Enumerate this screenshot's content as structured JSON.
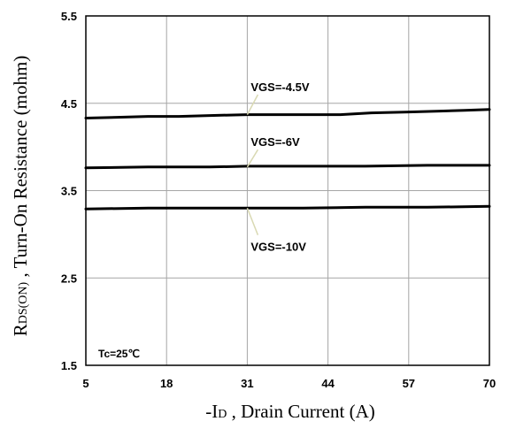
{
  "chart_data": {
    "type": "line",
    "xlabel": {
      "prefix": "-I",
      "sub": "D",
      "rest": " , Drain Current (A)"
    },
    "ylabel": {
      "prefix": "R",
      "sub": "DS(ON)",
      "rest": " , Turn-On Resistance (mohm)"
    },
    "xlim": [
      5,
      70
    ],
    "ylim": [
      1.5,
      5.5
    ],
    "x_ticks": [
      5,
      18,
      31,
      44,
      57,
      70
    ],
    "x_tick_labels": [
      "5",
      "18",
      "31",
      "44",
      "57",
      "70"
    ],
    "y_ticks": [
      1.5,
      2.5,
      3.5,
      4.5,
      5.5
    ],
    "y_tick_labels": [
      "1.5",
      "2.5",
      "3.5",
      "4.5",
      "5.5"
    ],
    "grid": true,
    "annotation": "Tc=25℃",
    "colors": {
      "line": "#000000",
      "grid": "#a6a6a6",
      "leader": "#d9d9b3"
    },
    "series": [
      {
        "name": "VGS=-4.5V",
        "x": [
          5,
          10,
          15,
          20,
          25,
          31,
          36,
          41,
          46,
          51,
          57,
          62,
          66,
          70
        ],
        "y": [
          4.33,
          4.34,
          4.35,
          4.35,
          4.36,
          4.37,
          4.37,
          4.37,
          4.37,
          4.39,
          4.4,
          4.41,
          4.42,
          4.43
        ],
        "label_anchor": [
          31,
          4.37
        ],
        "label_pos": [
          31,
          4.69
        ]
      },
      {
        "name": "VGS=-6V",
        "x": [
          5,
          15,
          25,
          31,
          40,
          50,
          60,
          70
        ],
        "y": [
          3.76,
          3.77,
          3.77,
          3.78,
          3.78,
          3.78,
          3.79,
          3.79
        ],
        "label_anchor": [
          31,
          3.77
        ],
        "label_pos": [
          31,
          4.06
        ]
      },
      {
        "name": "VGS=-10V",
        "x": [
          5,
          15,
          25,
          31,
          40,
          50,
          60,
          70
        ],
        "y": [
          3.29,
          3.3,
          3.3,
          3.3,
          3.3,
          3.31,
          3.31,
          3.32
        ],
        "label_anchor": [
          31,
          3.3
        ],
        "label_pos": [
          31,
          2.86
        ]
      }
    ]
  }
}
